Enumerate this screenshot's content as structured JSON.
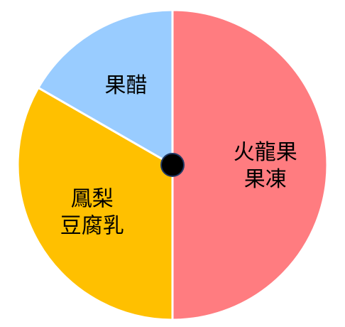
{
  "chart_data": {
    "type": "pie",
    "start": "top",
    "direction": "clockwise",
    "slices": [
      {
        "label_lines": [
          "火龍果",
          "果凍"
        ],
        "value": 50,
        "color": "#FF7C80"
      },
      {
        "label_lines": [
          "鳳梨",
          "豆腐乳"
        ],
        "value": 33.3,
        "color": "#FFC000"
      },
      {
        "label_lines": [
          "果醋"
        ],
        "value": 16.7,
        "color": "#99CCFF"
      }
    ],
    "slice_border_color": "#FFFFFF",
    "center_dot_color": "#000000",
    "center_dot_ring_color": "#1F3864"
  }
}
